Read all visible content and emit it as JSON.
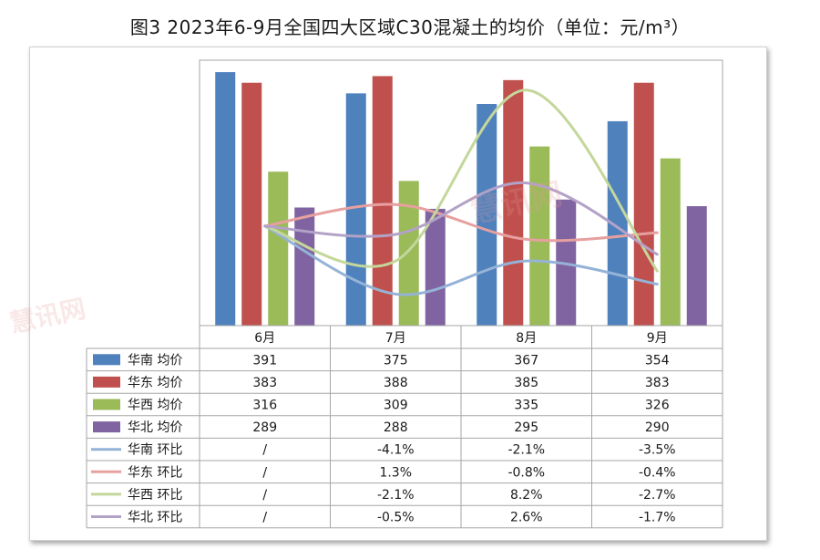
{
  "title": "图3 2023年6-9月全国四大区域C30混凝土的均价（单位：元/m³）",
  "watermark": "慧讯网",
  "chart_data": {
    "type": "bar",
    "categories": [
      "6月",
      "7月",
      "8月",
      "9月"
    ],
    "series": [
      {
        "name": "华南 均价",
        "kind": "bar",
        "color": "#4f81bd",
        "values": [
          391,
          375,
          367,
          354
        ]
      },
      {
        "name": "华东 均价",
        "kind": "bar",
        "color": "#c0504d",
        "values": [
          383,
          388,
          385,
          383
        ]
      },
      {
        "name": "华西 均价",
        "kind": "bar",
        "color": "#9bbb59",
        "values": [
          316,
          309,
          335,
          326
        ]
      },
      {
        "name": "华北 均价",
        "kind": "bar",
        "color": "#8064a2",
        "values": [
          289,
          288,
          295,
          290
        ]
      },
      {
        "name": "华南 环比",
        "kind": "line",
        "color": "#95b3d7",
        "values": [
          null,
          -4.1,
          -2.1,
          -3.5
        ]
      },
      {
        "name": "华东 环比",
        "kind": "line",
        "color": "#e6a09f",
        "values": [
          null,
          1.3,
          -0.8,
          -0.4
        ]
      },
      {
        "name": "华西 环比",
        "kind": "line",
        "color": "#c4d79b",
        "values": [
          null,
          -2.1,
          8.2,
          -2.7
        ]
      },
      {
        "name": "华北 环比",
        "kind": "line",
        "color": "#b3a2c7",
        "values": [
          null,
          -0.5,
          2.6,
          -1.7
        ]
      }
    ],
    "table": [
      [
        "391",
        "375",
        "367",
        "354"
      ],
      [
        "383",
        "388",
        "385",
        "383"
      ],
      [
        "316",
        "309",
        "335",
        "326"
      ],
      [
        "289",
        "288",
        "295",
        "290"
      ],
      [
        "/",
        "-4.1%",
        "-2.1%",
        "-3.5%"
      ],
      [
        "/",
        "1.3%",
        "-0.8%",
        "-0.4%"
      ],
      [
        "/",
        "-2.1%",
        "8.2%",
        "-2.7%"
      ],
      [
        "/",
        "-0.5%",
        "2.6%",
        "-1.7%"
      ]
    ],
    "bar_axis_range": [
      200,
      400
    ],
    "line_axis_range": [
      -6,
      10
    ],
    "grid": false,
    "legend": "data-table"
  }
}
